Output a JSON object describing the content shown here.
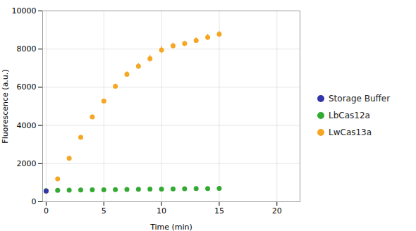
{
  "chart_data": {
    "type": "scatter",
    "xlabel": "Time (min)",
    "ylabel": "Fluorescence (a.u.)",
    "xlim": [
      -0.3,
      22
    ],
    "ylim": [
      0,
      10000
    ],
    "xticks": [
      0,
      5,
      10,
      15,
      20
    ],
    "yticks": [
      0,
      2000,
      4000,
      6000,
      8000,
      10000
    ],
    "grid": true,
    "legend": "right",
    "marker": "circle",
    "series": [
      {
        "name": "Storage Buffer",
        "color": "#3333aa",
        "x": [
          0
        ],
        "values": [
          560
        ],
        "yerr": [
          20
        ]
      },
      {
        "name": "LbCas12a",
        "color": "#33aa33",
        "x": [
          0,
          1,
          2,
          3,
          4,
          5,
          6,
          7,
          8,
          9,
          10,
          11,
          12,
          13,
          14,
          15
        ],
        "values": [
          580,
          600,
          610,
          615,
          625,
          630,
          640,
          650,
          655,
          660,
          665,
          670,
          680,
          690,
          695,
          700
        ],
        "yerr": [
          15,
          15,
          15,
          15,
          15,
          15,
          15,
          15,
          15,
          15,
          15,
          15,
          15,
          15,
          15,
          15
        ]
      },
      {
        "name": "LwCas13a",
        "color": "#f5a623",
        "x": [
          0,
          1,
          2,
          3,
          4,
          5,
          6,
          7,
          8,
          9,
          10,
          11,
          12,
          13,
          14,
          15
        ],
        "values": [
          560,
          1200,
          2280,
          3380,
          4450,
          5280,
          6050,
          6680,
          7100,
          7500,
          7950,
          8170,
          8290,
          8450,
          8620,
          8780
        ],
        "yerr": [
          20,
          50,
          60,
          60,
          100,
          100,
          120,
          140,
          150,
          180,
          180,
          150,
          130,
          150,
          160,
          150
        ]
      }
    ]
  }
}
